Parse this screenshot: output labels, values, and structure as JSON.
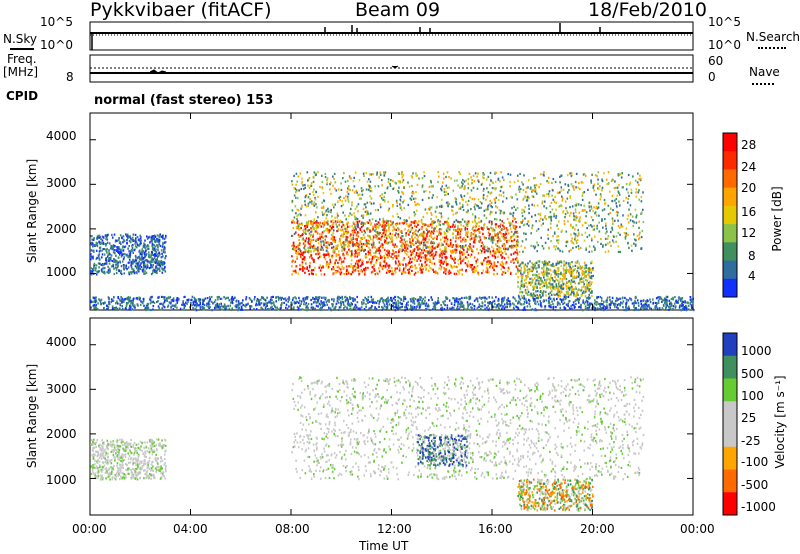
{
  "header": {
    "station": "Pykkvibaer (fitACF)",
    "beam": "Beam 09",
    "date": "18/Feb/2010"
  },
  "nsky_panel": {
    "left_label": "N.Sky",
    "right_label": "N.Search",
    "left_ticks": [
      "10^5",
      "10^0"
    ],
    "right_ticks": [
      "10^5",
      "10^0"
    ]
  },
  "freq_panel": {
    "left_label_line1": "Freq.",
    "left_label_line2": "[MHz]",
    "right_label": "Nave",
    "left_ticks": [
      "8"
    ],
    "right_ticks": [
      "60",
      "0"
    ]
  },
  "cpid": {
    "label": "CPID",
    "text": "normal (fast stereo) 153"
  },
  "power_panel": {
    "ylabel": "Slant Range [km]",
    "yticks": [
      "4000",
      "3000",
      "2000",
      "1000"
    ],
    "colorbar_label": "Power [dB]",
    "colorbar_ticks": [
      "28",
      "24",
      "20",
      "16",
      "12",
      "8",
      "4"
    ],
    "colorbar_colors": [
      "#ff0000",
      "#ff2a00",
      "#ff6a00",
      "#ffa500",
      "#e6c800",
      "#8bc34a",
      "#3f8f5f",
      "#2e6e9e",
      "#1030ff"
    ]
  },
  "velocity_panel": {
    "ylabel": "Slant Range [km]",
    "yticks": [
      "4000",
      "3000",
      "2000",
      "1000"
    ],
    "colorbar_label": "Velocity [m s⁻¹]",
    "colorbar_ticks": [
      "1000",
      "500",
      "100",
      "25",
      "-25",
      "-100",
      "-500",
      "-1000"
    ],
    "colorbar_colors": [
      "#2040c0",
      "#3f8f5f",
      "#66cc33",
      "#c8c8c8",
      "#c8c8c8",
      "#ffa500",
      "#ff6a00",
      "#ff0000"
    ]
  },
  "time_axis": {
    "label": "Time UT",
    "ticks": [
      "00:00",
      "04:00",
      "08:00",
      "12:00",
      "16:00",
      "20:00",
      "00:00"
    ]
  },
  "chart_data": {
    "type": "heatmap",
    "title": "Pykkvibaer (fitACF)  Beam 09  18/Feb/2010",
    "xlabel": "Time UT",
    "ylabel": "Slant Range [km]",
    "x_ticks": [
      "00:00",
      "04:00",
      "08:00",
      "12:00",
      "16:00",
      "20:00",
      "00:00"
    ],
    "y_ticks": [
      4000,
      3000,
      2000,
      1000
    ],
    "series": [
      {
        "name": "Power [dB]",
        "colorbar_ticks": [
          28,
          24,
          20,
          16,
          12,
          8,
          4
        ],
        "regions": [
          {
            "t_start_h": 0.0,
            "t_end_h": 3.0,
            "range_km": [
              1000,
              1900
            ],
            "level": "weak"
          },
          {
            "t_start_h": 8.0,
            "t_end_h": 17.0,
            "range_km": [
              1000,
              2200
            ],
            "level": "strong"
          },
          {
            "t_start_h": 8.0,
            "t_end_h": 22.0,
            "range_km": [
              1500,
              3300
            ],
            "level": "moderate"
          },
          {
            "t_start_h": 17.0,
            "t_end_h": 20.0,
            "range_km": [
              500,
              1300
            ],
            "level": "moderate"
          },
          {
            "t_start_h": 0.0,
            "t_end_h": 24.0,
            "range_km": [
              200,
              500
            ],
            "level": "weak"
          }
        ]
      },
      {
        "name": "Velocity [m s⁻¹]",
        "colorbar_ticks": [
          1000,
          500,
          100,
          25,
          -25,
          -100,
          -500,
          -1000
        ],
        "regions": [
          {
            "t_start_h": 0.0,
            "t_end_h": 3.0,
            "range_km": [
              1000,
              1900
            ],
            "level": "near-zero"
          },
          {
            "t_start_h": 8.0,
            "t_end_h": 22.0,
            "range_km": [
              1000,
              3300
            ],
            "level": "near-zero"
          },
          {
            "t_start_h": 13.0,
            "t_end_h": 15.0,
            "range_km": [
              1300,
              2000
            ],
            "level": "positive"
          },
          {
            "t_start_h": 17.0,
            "t_end_h": 20.0,
            "range_km": [
              300,
              1000
            ],
            "level": "mixed"
          }
        ]
      }
    ]
  }
}
